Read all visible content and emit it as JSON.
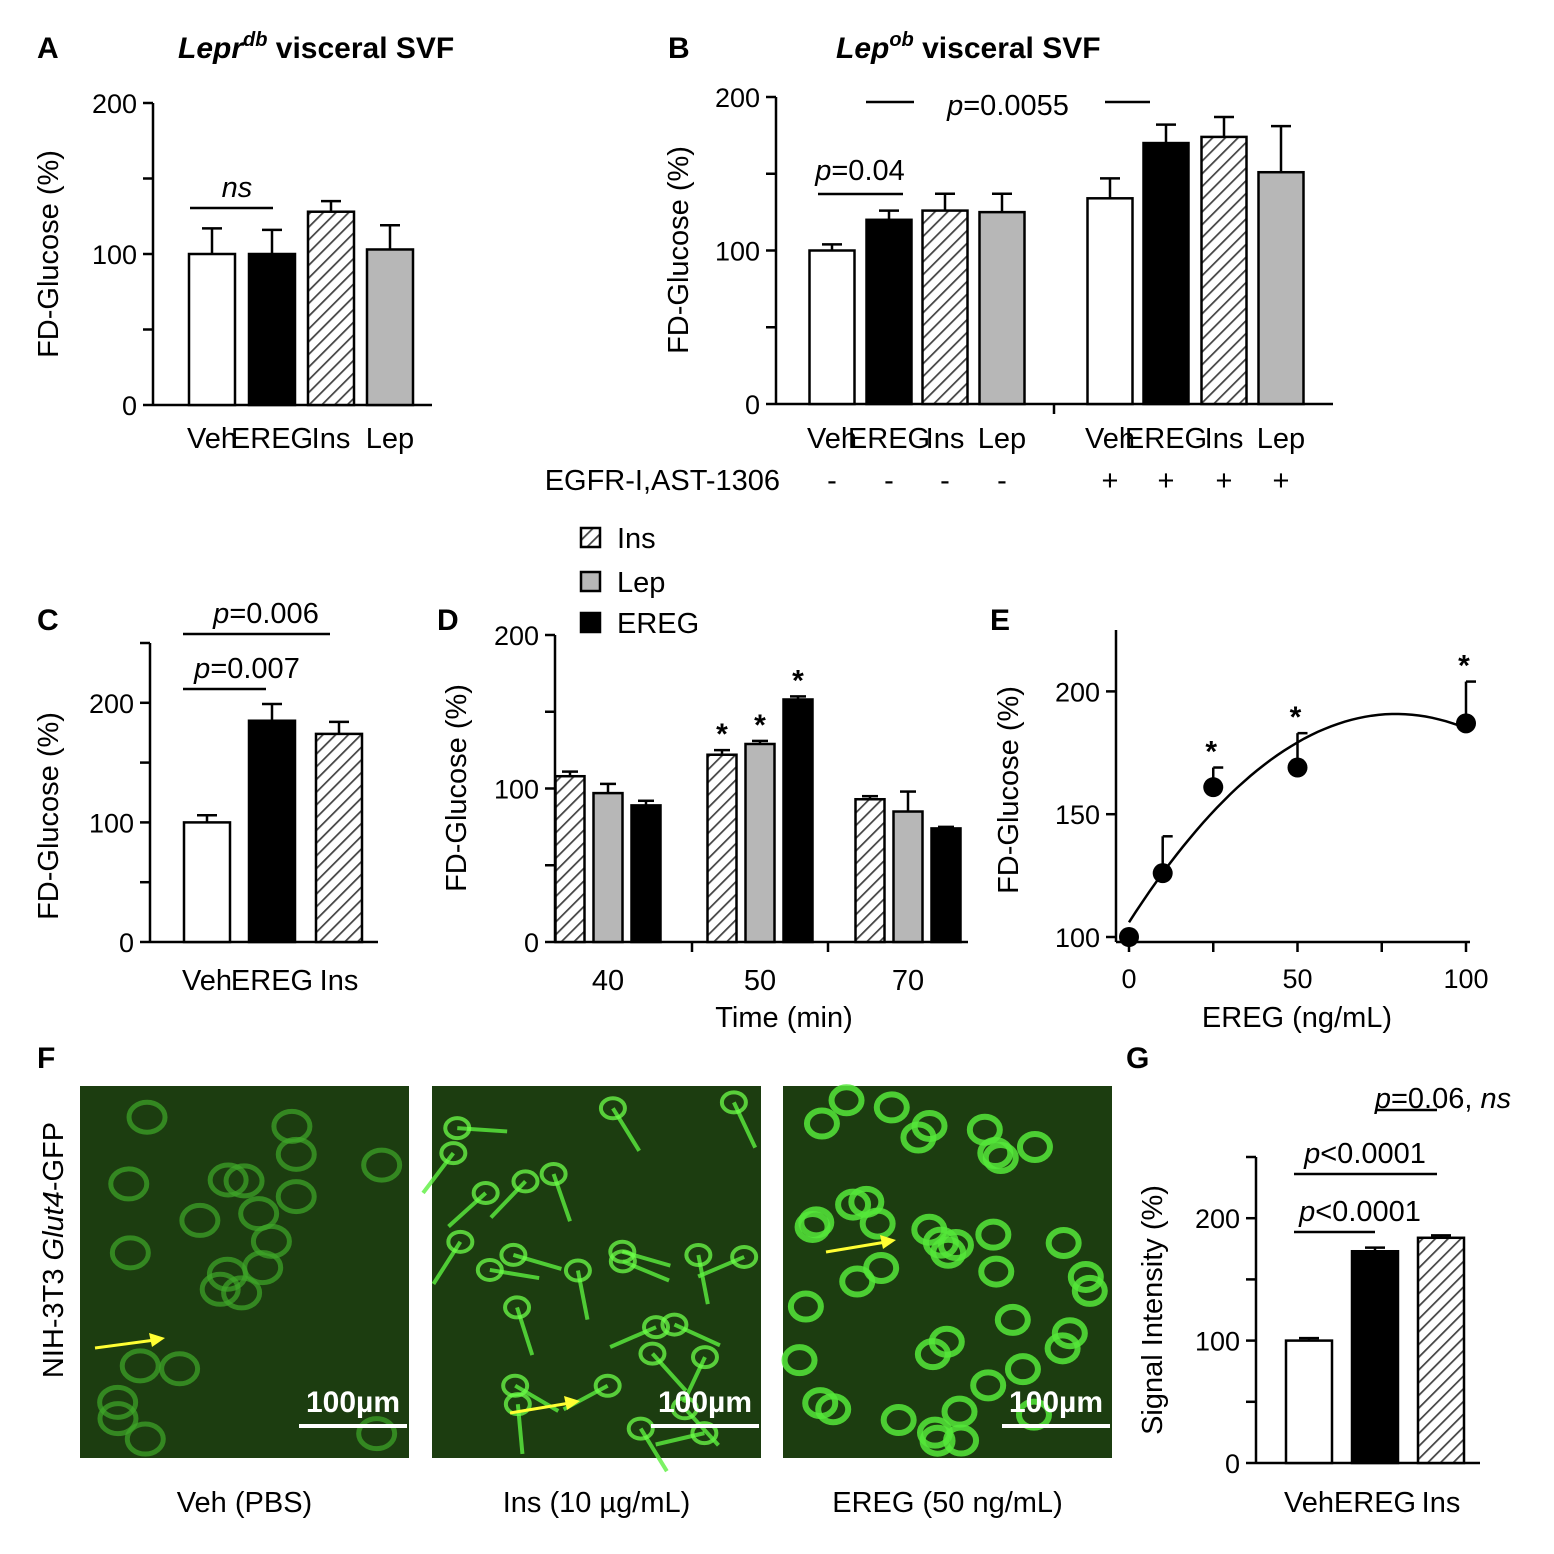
{
  "colors": {
    "Veh": "#ffffff",
    "EREG": "#000000",
    "Ins": "hatch",
    "Lep": "#b7b7b7",
    "micro_bg": "#1c3d10",
    "arrow": "#ffff33"
  },
  "chart_data": [
    {
      "id": "A",
      "type": "bar",
      "letter": "A",
      "title_italic": "Lepr",
      "title_sup": "db",
      "title_rest": " visceral SVF",
      "ylabel": "FD-Glucose  (%)",
      "ylim": [
        0,
        200
      ],
      "yticks": [
        "0",
        "100",
        "200"
      ],
      "ytick_values": [
        0,
        100,
        200
      ],
      "categories": [
        "Veh",
        "EREG",
        "Ins",
        "Lep"
      ],
      "values": [
        100,
        100,
        128,
        103
      ],
      "errors": [
        17,
        16,
        7,
        16
      ],
      "fills": [
        "Veh",
        "EREG",
        "Ins",
        "Lep"
      ],
      "annotations": [
        {
          "text": "ns",
          "from": 0,
          "to": 1,
          "italic": true
        }
      ]
    },
    {
      "id": "B",
      "type": "bar",
      "letter": "B",
      "title_italic": "Lep",
      "title_sup": "ob",
      "title_rest": "  visceral SVF",
      "ylabel": "FD-Glucose  (%)",
      "ylim": [
        0,
        200
      ],
      "yticks": [
        "0",
        "100",
        "200"
      ],
      "ytick_values": [
        0,
        100,
        200
      ],
      "categories": [
        "Veh",
        "EREG",
        "Ins",
        "Lep",
        "Veh",
        "EREG",
        "Ins",
        "Lep"
      ],
      "values": [
        100,
        120,
        126,
        125,
        134,
        170,
        174,
        151
      ],
      "errors": [
        4,
        6,
        11,
        12,
        13,
        12,
        13,
        30
      ],
      "fills": [
        "Veh",
        "EREG",
        "Ins",
        "Lep",
        "Veh",
        "EREG",
        "Ins",
        "Lep"
      ],
      "treatment_label": "EGFR-I,AST-1306",
      "treatment": [
        "-",
        "-",
        "-",
        "-",
        "+",
        "+",
        "+",
        "+"
      ],
      "annotations": [
        {
          "p": "p",
          "text": "=0.04",
          "from": 0,
          "to": 1
        },
        {
          "p": "p",
          "text": "=0.0055",
          "from": 1,
          "to": 5
        }
      ]
    },
    {
      "id": "C",
      "type": "bar",
      "letter": "C",
      "ylabel": "FD-Glucose  (%)",
      "ylim": [
        0,
        250
      ],
      "yticks": [
        "0",
        "100",
        "200"
      ],
      "ytick_values": [
        0,
        100,
        200
      ],
      "categories": [
        "Veh",
        "EREG",
        "Ins"
      ],
      "values": [
        100,
        185,
        174
      ],
      "errors": [
        6,
        14,
        10
      ],
      "fills": [
        "Veh",
        "EREG",
        "Ins"
      ],
      "annotations": [
        {
          "p": "p",
          "text": "=0.007",
          "from": 0,
          "to": 1
        },
        {
          "p": "p",
          "text": "=0.006",
          "from": 0,
          "to": 2
        }
      ]
    },
    {
      "id": "D",
      "type": "bar",
      "letter": "D",
      "ylabel": "FD-Glucose  (%)",
      "xlabel": "Time (min)",
      "ylim": [
        0,
        200
      ],
      "yticks": [
        "0",
        "100",
        "200"
      ],
      "ytick_values": [
        0,
        100,
        200
      ],
      "categories": [
        "40",
        "50",
        "70"
      ],
      "legend": [
        "Ins",
        "Lep",
        "EREG"
      ],
      "series": [
        {
          "name": "Ins",
          "values": [
            108,
            122,
            93
          ],
          "errors": [
            3,
            3,
            2
          ]
        },
        {
          "name": "Lep",
          "values": [
            97,
            129,
            85
          ],
          "errors": [
            6,
            2,
            13
          ]
        },
        {
          "name": "EREG",
          "values": [
            89,
            158,
            74
          ],
          "errors": [
            3,
            2,
            1
          ]
        }
      ],
      "star": "*",
      "stars": [
        [
          false,
          true,
          false
        ],
        [
          false,
          true,
          false
        ],
        [
          false,
          true,
          false
        ]
      ]
    },
    {
      "id": "E",
      "type": "scatter",
      "letter": "E",
      "ylabel": "FD-Glucose  (%)",
      "xlabel": "EREG (ng/mL)",
      "xlim": [
        0,
        100
      ],
      "ylim": [
        100,
        225
      ],
      "xticks": [
        "0",
        "50",
        "100"
      ],
      "xtick_values": [
        0,
        50,
        100
      ],
      "yticks": [
        "100",
        "150",
        "200"
      ],
      "ytick_values": [
        100,
        150,
        200
      ],
      "x": [
        0,
        10,
        25,
        50,
        100
      ],
      "y": [
        100,
        126,
        161,
        169,
        187
      ],
      "errors": [
        0,
        15,
        8,
        14,
        17
      ],
      "star": "*",
      "stars": [
        false,
        false,
        true,
        true,
        true
      ]
    },
    {
      "id": "G",
      "type": "bar",
      "letter": "G",
      "ylabel": "Signal Intensity  (%)",
      "ylim": [
        0,
        250
      ],
      "yticks": [
        "0",
        "100",
        "200"
      ],
      "ytick_values": [
        0,
        100,
        200
      ],
      "categories": [
        "Veh",
        "EREG",
        "Ins"
      ],
      "values": [
        100,
        173,
        184
      ],
      "errors": [
        2,
        3,
        2
      ],
      "fills": [
        "Veh",
        "EREG",
        "Ins"
      ],
      "annotations": [
        {
          "p": "p",
          "text": "<0.0001",
          "from": 0,
          "to": 1
        },
        {
          "p": "p",
          "text": "<0.0001",
          "from": 0,
          "to": 2
        },
        {
          "p": "p",
          "text": "=0.06",
          "suffix": ", ",
          "suffix_italic": "ns",
          "from": 1,
          "to": 2
        }
      ]
    }
  ],
  "panel_F": {
    "letter": "F",
    "side_label_plain": "NIH-3T3  ",
    "side_label_italic": "Glut4",
    "side_label_rest": "-GFP",
    "scale_bar": "100µm",
    "images": [
      {
        "caption": "Veh (PBS)",
        "pattern": "sparse"
      },
      {
        "caption": "Ins  (10 µg/mL)",
        "pattern": "fibrous"
      },
      {
        "caption": "EREG (50 ng/mL)",
        "pattern": "rings"
      }
    ]
  }
}
